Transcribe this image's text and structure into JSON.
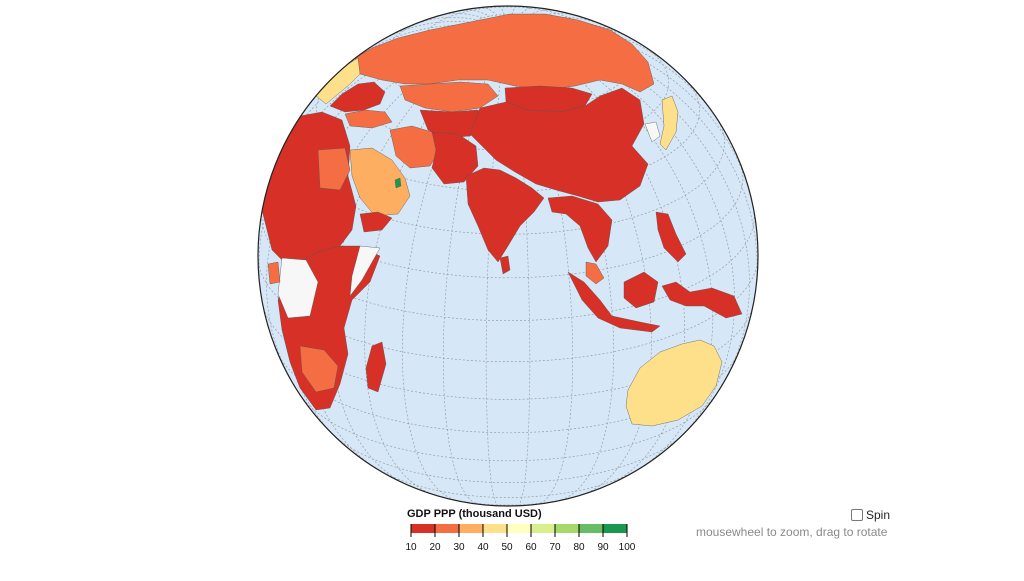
{
  "legend": {
    "title": "GDP PPP (thousand USD)",
    "tick_labels": [
      "10",
      "20",
      "30",
      "40",
      "50",
      "60",
      "70",
      "80",
      "90",
      "100"
    ],
    "colors": [
      "#d73027",
      "#f46d43",
      "#fdae61",
      "#fee08b",
      "#ffffbf",
      "#d9ef8b",
      "#a6d96a",
      "#66bd63",
      "#1a9850"
    ]
  },
  "controls": {
    "spin_label": "Spin",
    "spin_checked": false,
    "hint": "mousewheel to zoom, drag to rotate"
  },
  "map": {
    "projection": "orthographic",
    "ocean_color": "#d6e8f8",
    "graticule": "dashed",
    "no_data_color": "#f7f7f7",
    "icons": [
      "globe",
      "checkbox"
    ]
  }
}
